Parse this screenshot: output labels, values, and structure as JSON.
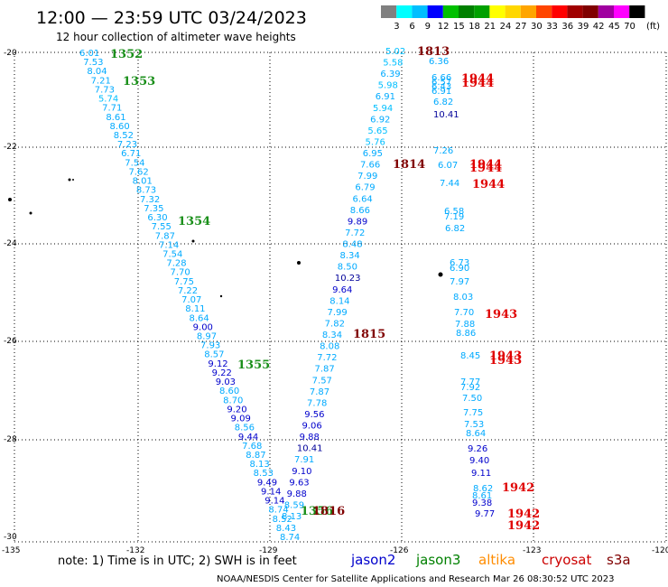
{
  "title": "12:00 — 23:59 UTC 03/24/2023",
  "subtitle": "12 hour collection of altimeter wave heights",
  "legend": {
    "unit": "(ft)",
    "labels": [
      "3",
      "6",
      "9",
      "12",
      "15",
      "18",
      "21",
      "24",
      "27",
      "30",
      "33",
      "36",
      "39",
      "42",
      "45",
      "70"
    ],
    "colors": [
      "#808080",
      "#00ffff",
      "#00bfff",
      "#0000ff",
      "#00c000",
      "#008000",
      "#00a000",
      "#ffff00",
      "#ffd700",
      "#ffa500",
      "#ff4500",
      "#ff0000",
      "#a00000",
      "#800000",
      "#a000a0",
      "#ff00ff",
      "#000000"
    ]
  },
  "axes": {
    "lon_ticks": [
      "-135",
      "-132",
      "-129",
      "-126",
      "-123",
      "-120"
    ],
    "lat_ticks": [
      "-20",
      "-22",
      "-24",
      "-26",
      "-28",
      "-30"
    ]
  },
  "note": "note:  1) Time is in UTC;  2) SWH is in feet",
  "satellites": [
    {
      "name": "jason2",
      "color": "#0000cc"
    },
    {
      "name": "jason3",
      "color": "#008000"
    },
    {
      "name": "altika",
      "color": "#ff8c00"
    },
    {
      "name": "cryosat",
      "color": "#cc0000"
    },
    {
      "name": "s3a",
      "color": "#800000"
    }
  ],
  "credit": "NOAA/NESDIS Center for Satellite Applications and Research   Mar 26 08:30:52 UTC 2023",
  "tracks": {
    "jason3_west": {
      "times": [
        "1352",
        "1353",
        "1354",
        "1355",
        "1356"
      ],
      "values": [
        "6.01",
        "7.53",
        "8.04",
        "7.21",
        "7.73",
        "5.74",
        "7.71",
        "8.61",
        "8.60",
        "8.52",
        "7.23",
        "6.71",
        "7.54",
        "7.62",
        "8.01",
        "8.73",
        "7.32",
        "7.35",
        "6.30",
        "7.55",
        "7.87",
        "7.14",
        "7.54",
        "7.28",
        "7.70",
        "7.75",
        "7.22",
        "7.07",
        "8.11",
        "8.64",
        "9.00",
        "8.97",
        "7.93",
        "8.57",
        "9.12",
        "9.22",
        "9.03",
        "8.60",
        "8.70",
        "9.20",
        "9.09",
        "8.56",
        "9.44",
        "7.68",
        "8.87",
        "8.13",
        "8.53",
        "9.49",
        "9.14",
        "9.14",
        "8.74",
        "8.52",
        "8.43",
        "8.74"
      ]
    },
    "s3a_middle": {
      "times": [
        "1813",
        "1814",
        "1815",
        "1816"
      ],
      "values": [
        "5.02",
        "5.58",
        "6.39",
        "5.98",
        "6.91",
        "5.94",
        "6.92",
        "5.65",
        "5.76",
        "6.95",
        "7.66",
        "7.99",
        "6.79",
        "6.64",
        "8.66",
        "9.89",
        "7.72",
        "8.48",
        "8.34",
        "8.50",
        "10.23",
        "9.64",
        "8.14",
        "7.99",
        "7.82",
        "8.34",
        "8.08",
        "7.72",
        "7.87",
        "7.57",
        "7.87",
        "7.78",
        "9.56",
        "9.06",
        "9.88",
        "10.41",
        "7.91",
        "9.10",
        "9.63",
        "9.88",
        "8.59",
        "8.13"
      ]
    },
    "cryosat_east": {
      "times": [
        "1944",
        "1943",
        "1942"
      ],
      "values": [
        "6.36",
        "6.66",
        "6.57",
        "6.43",
        "6.91",
        "6.82",
        "10.41",
        "7.26",
        "6.07",
        "7.44",
        "6.58",
        "7.19",
        "6.82",
        "6.73",
        "6.90",
        "7.97",
        "8.03",
        "7.70",
        "7.88",
        "8.86",
        "8.45",
        "7.77",
        "7.92",
        "7.50",
        "7.75",
        "7.53",
        "8.64",
        "9.26",
        "9.40",
        "9.11",
        "8.62",
        "8.61",
        "9.38",
        "9.77"
      ]
    }
  }
}
